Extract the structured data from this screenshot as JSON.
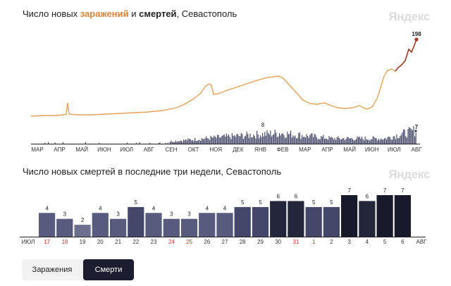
{
  "chart1": {
    "title_prefix": "Число новых ",
    "title_infections": "заражений",
    "title_mid": " и ",
    "title_deaths": "смертей",
    "title_suffix": ", Севастополь",
    "brand": "Яндекс",
    "months": [
      "МАР",
      "АПР",
      "МАЙ",
      "ИЮН",
      "ИЮЛ",
      "АВГ",
      "СЕН",
      "ОКТ",
      "НОЯ",
      "ДЕК",
      "ЯНВ",
      "ФЕВ",
      "МАР",
      "АПР",
      "МАЙ",
      "ИЮН",
      "ИЮЛ",
      "АВГ"
    ],
    "last_infections_label": "198",
    "peak_deaths_label": "8",
    "last_deaths_label": "7",
    "colors": {
      "infections": "#e2a25a",
      "infections_end": "#a0392b",
      "deaths": "#4a4c6e"
    }
  },
  "chart2": {
    "title": "Число новых смертей в последние три недели, Севастополь",
    "brand": "Яндекс",
    "left_month": "ИЮЛ",
    "right_month": "АВГ"
  },
  "chart_data": [
    {
      "type": "line",
      "title": "Число новых заражений и смертей, Севастополь",
      "x_range": [
        "МАР",
        "АВГ"
      ],
      "series": [
        {
          "name": "заражений",
          "last_value": 198
        },
        {
          "name": "смертей",
          "peak_value": 8,
          "last_value": 7
        }
      ]
    },
    {
      "type": "bar",
      "title": "Число новых смертей в последние три недели, Севастополь",
      "categories": [
        "17",
        "18",
        "19",
        "20",
        "21",
        "22",
        "23",
        "24",
        "25",
        "26",
        "27",
        "28",
        "29",
        "30",
        "31",
        "1",
        "2",
        "3",
        "4",
        "5",
        "6"
      ],
      "weekend": [
        true,
        true,
        false,
        false,
        false,
        false,
        false,
        true,
        true,
        false,
        false,
        false,
        false,
        false,
        true,
        true,
        false,
        false,
        false,
        false,
        false
      ],
      "values": [
        4,
        3,
        2,
        4,
        3,
        5,
        4,
        3,
        3,
        4,
        4,
        5,
        5,
        6,
        6,
        5,
        5,
        7,
        6,
        7,
        7
      ],
      "ylim": [
        0,
        7
      ]
    }
  ],
  "tabs": {
    "infections": "Заражения",
    "deaths": "Смерти"
  }
}
